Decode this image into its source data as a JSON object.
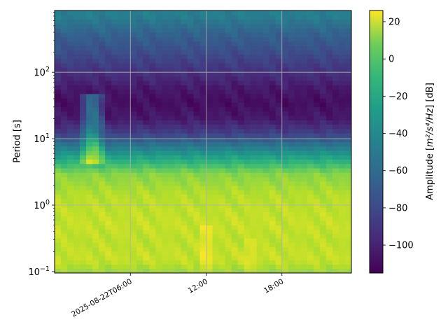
{
  "chart_data": {
    "type": "heatmap",
    "title": "",
    "xlabel": "",
    "ylabel": "Period [s]",
    "yscale": "log",
    "ylim": [
      0.095,
      850
    ],
    "yticks": [
      {
        "value": 0.1,
        "base": "10",
        "exp": "−1"
      },
      {
        "value": 1,
        "base": "10",
        "exp": "0"
      },
      {
        "value": 10,
        "base": "10",
        "exp": "1"
      },
      {
        "value": 100,
        "base": "10",
        "exp": "2"
      }
    ],
    "xlim": [
      "2025-08-22T00:00",
      "2025-08-22T23:30"
    ],
    "xticks": [
      {
        "value": "2025-08-22T06:00",
        "label": "2025-08-22T06:00"
      },
      {
        "value": "2025-08-22T12:00",
        "label": "12:00"
      },
      {
        "value": "2025-08-22T18:00",
        "label": "18:00"
      }
    ],
    "grid": true,
    "colormap": "viridis",
    "colorbar": {
      "label_main": "Amplitude [",
      "label_math": "m²/s⁴/Hz",
      "label_tail": "] [dB]",
      "range": [
        -115,
        26
      ],
      "ticks": [
        "20",
        "0",
        "−20",
        "−40",
        "−60",
        "−80",
        "−100"
      ],
      "tick_values": [
        20,
        0,
        -20,
        -40,
        -60,
        -80,
        -100
      ]
    },
    "period_bands": [
      {
        "period": 700,
        "db": -55
      },
      {
        "period": 400,
        "db": -70
      },
      {
        "period": 200,
        "db": -82
      },
      {
        "period": 100,
        "db": -95
      },
      {
        "period": 60,
        "db": -105
      },
      {
        "period": 35,
        "db": -110
      },
      {
        "period": 20,
        "db": -105
      },
      {
        "period": 12,
        "db": -88
      },
      {
        "period": 8,
        "db": -60
      },
      {
        "period": 5,
        "db": -30
      },
      {
        "period": 3,
        "db": 0
      },
      {
        "period": 1.5,
        "db": 10
      },
      {
        "period": 1,
        "db": 12
      },
      {
        "period": 0.5,
        "db": 14
      },
      {
        "period": 0.3,
        "db": 12
      },
      {
        "period": 0.15,
        "db": 14
      },
      {
        "period": 0.1,
        "db": 5
      }
    ]
  }
}
